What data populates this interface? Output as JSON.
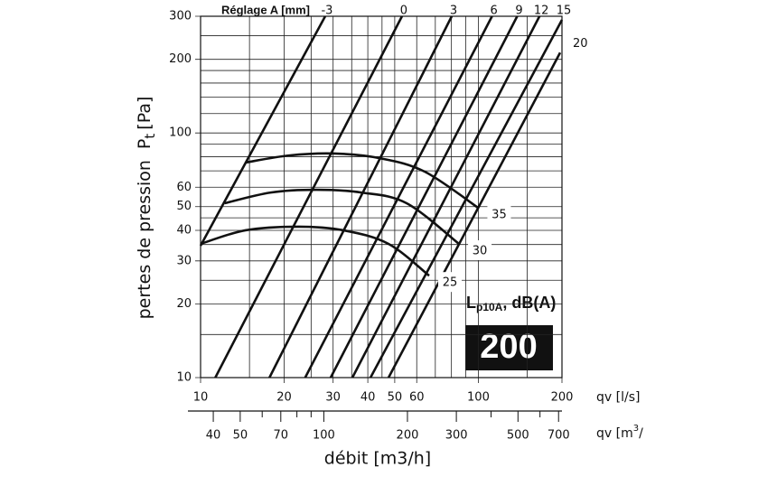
{
  "chart_data": {
    "type": "line",
    "setting_title": "Réglage A [mm]",
    "y_label": "pertes de pression",
    "y_symbol": "P",
    "y_symbol_sub": "t",
    "y_unit": "[Pa]",
    "x_label": "qv [l/s]",
    "x2_label_main": "qv [m",
    "x2_label_sup": "3",
    "x2_label_end": "/",
    "x_title": "débit [m3/h]",
    "noise_label_main": "L",
    "noise_label_sub": "p10A",
    "noise_label_end": ", dB(A)",
    "size_label": "200",
    "log_x": true,
    "log_y": true,
    "grid": true,
    "xlim": [
      10,
      200
    ],
    "ylim": [
      10,
      300
    ],
    "x2lim": [
      36,
      720
    ],
    "xticks": [
      10,
      20,
      30,
      40,
      50,
      60,
      100,
      200
    ],
    "x_minor_ticks": [
      15,
      25,
      35,
      45,
      70,
      80,
      90,
      150
    ],
    "yticks": [
      10,
      20,
      30,
      40,
      50,
      60,
      100,
      200,
      300
    ],
    "y_minor_ticks": [
      15,
      25,
      35,
      45,
      70,
      80,
      90,
      120,
      140,
      160,
      180,
      250
    ],
    "x2ticks": [
      40,
      50,
      70,
      100,
      200,
      300,
      500,
      700
    ],
    "x2_minor_ticks": [
      60,
      80,
      90,
      400,
      600
    ],
    "series": [
      {
        "name": "-3",
        "color": "#111",
        "x": [
          10,
          28.1
        ],
        "values": [
          34.6,
          300
        ]
      },
      {
        "name": "0",
        "color": "#111",
        "x": [
          11.3,
          53.1
        ],
        "values": [
          10,
          300
        ]
      },
      {
        "name": "3",
        "color": "#111",
        "x": [
          17.7,
          80.2
        ],
        "values": [
          10,
          300
        ]
      },
      {
        "name": "6",
        "color": "#111",
        "x": [
          23.8,
          112
        ],
        "values": [
          10,
          300
        ]
      },
      {
        "name": "9",
        "color": "#111",
        "x": [
          29.4,
          138
        ],
        "values": [
          10,
          300
        ]
      },
      {
        "name": "12",
        "color": "#111",
        "x": [
          35.2,
          166
        ],
        "values": [
          10,
          300
        ]
      },
      {
        "name": "15",
        "color": "#111",
        "x": [
          40.9,
          200
        ],
        "values": [
          10,
          290
        ]
      },
      {
        "name": "20",
        "color": "#111",
        "x": [
          47.5,
          197
        ],
        "values": [
          10,
          213
        ]
      }
    ],
    "noise_series": [
      {
        "name": "35",
        "color": "#111",
        "x": [
          14.5,
          20.8,
          30.3,
          44.1,
          64.1,
          100
        ],
        "values": [
          75.7,
          80.9,
          82.4,
          78.9,
          69.5,
          49.4
        ]
      },
      {
        "name": "30",
        "color": "#111",
        "x": [
          12.2,
          17.9,
          26.1,
          37.9,
          55.2,
          85.2
        ],
        "values": [
          51.6,
          57.1,
          58.6,
          57.1,
          51.6,
          35.2
        ]
      },
      {
        "name": "25",
        "color": "#111",
        "x": [
          10,
          14.5,
          22.5,
          32.7,
          47.5,
          66.5
        ],
        "values": [
          35.2,
          40.0,
          41.4,
          40.0,
          35.2,
          26.1
        ]
      }
    ]
  }
}
